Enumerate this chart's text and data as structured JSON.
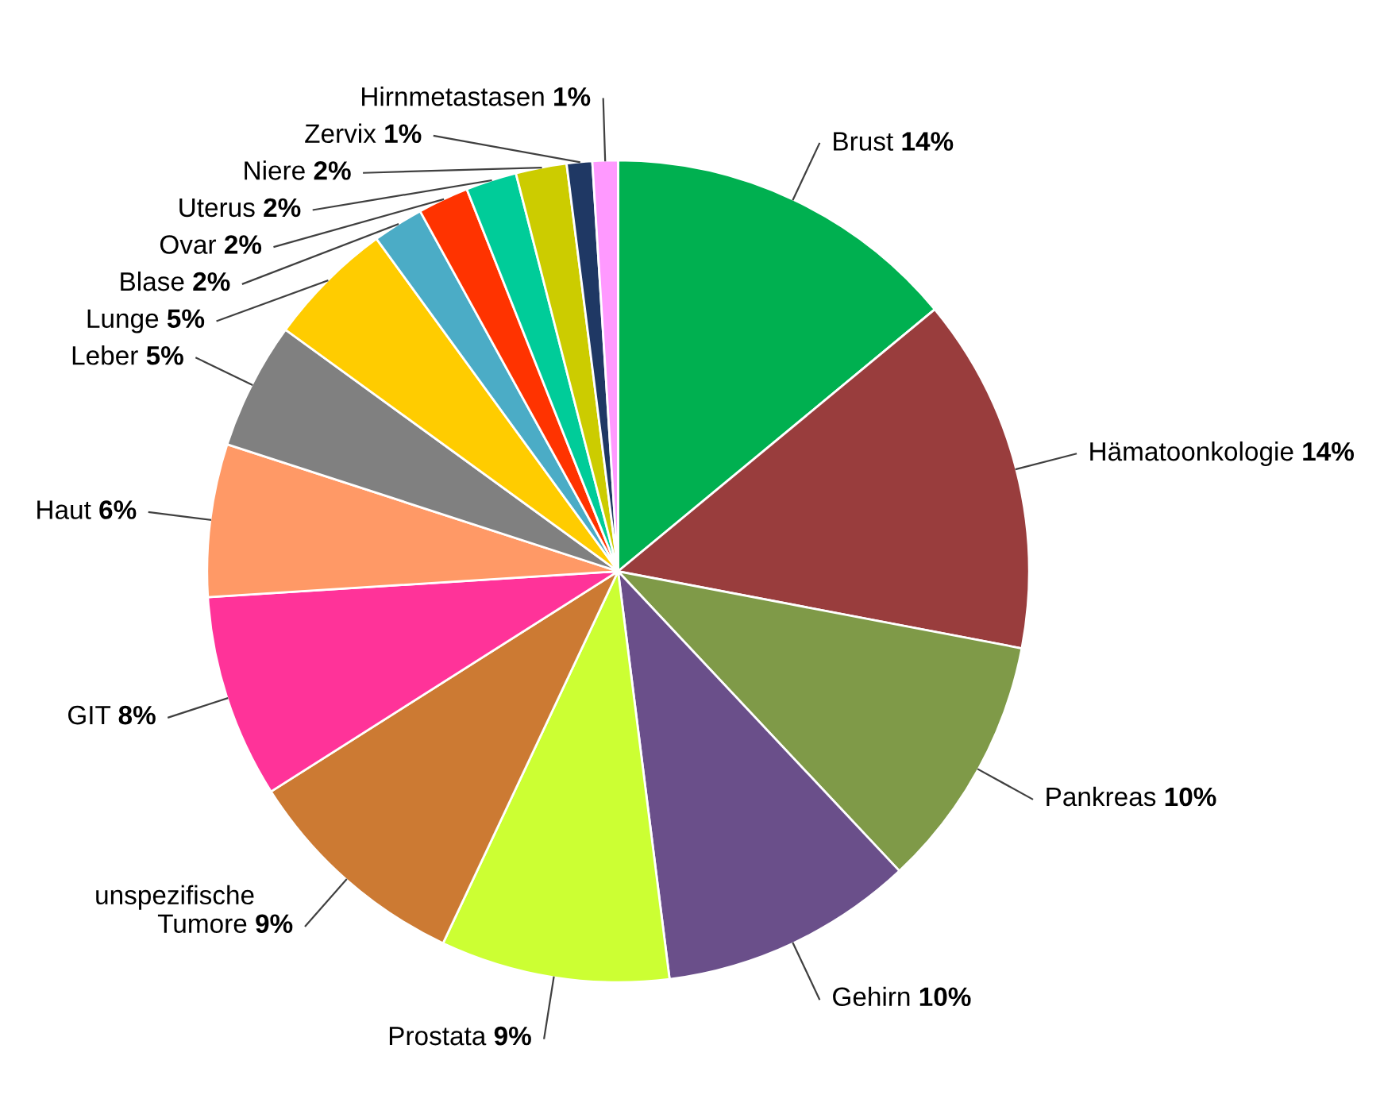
{
  "chart_data": {
    "type": "pie",
    "categories": [
      "Brust",
      "Hämatoonkologie",
      "Pankreas",
      "Gehirn",
      "Prostata",
      "unspezifische Tumore",
      "GIT",
      "Haut",
      "Leber",
      "Lunge",
      "Blase",
      "Ovar",
      "Uterus",
      "Niere",
      "Zervix",
      "Hirnmetastasen"
    ],
    "values": [
      14,
      14,
      10,
      10,
      9,
      9,
      8,
      6,
      5,
      5,
      2,
      2,
      2,
      2,
      1,
      1
    ],
    "value_labels": [
      "14%",
      "14%",
      "10%",
      "10%",
      "9%",
      "9%",
      "8%",
      "6%",
      "5%",
      "5%",
      "2%",
      "2%",
      "2%",
      "2%",
      "1%",
      "1%"
    ],
    "colors": [
      "#00b050",
      "#993d3d",
      "#7f9a48",
      "#6a4f8a",
      "#ccff33",
      "#cc7a33",
      "#ff3399",
      "#ff9966",
      "#808080",
      "#ffcc00",
      "#4bacc6",
      "#ff3300",
      "#00cc99",
      "#cccc00",
      "#1f3864",
      "#ff99ff"
    ]
  }
}
